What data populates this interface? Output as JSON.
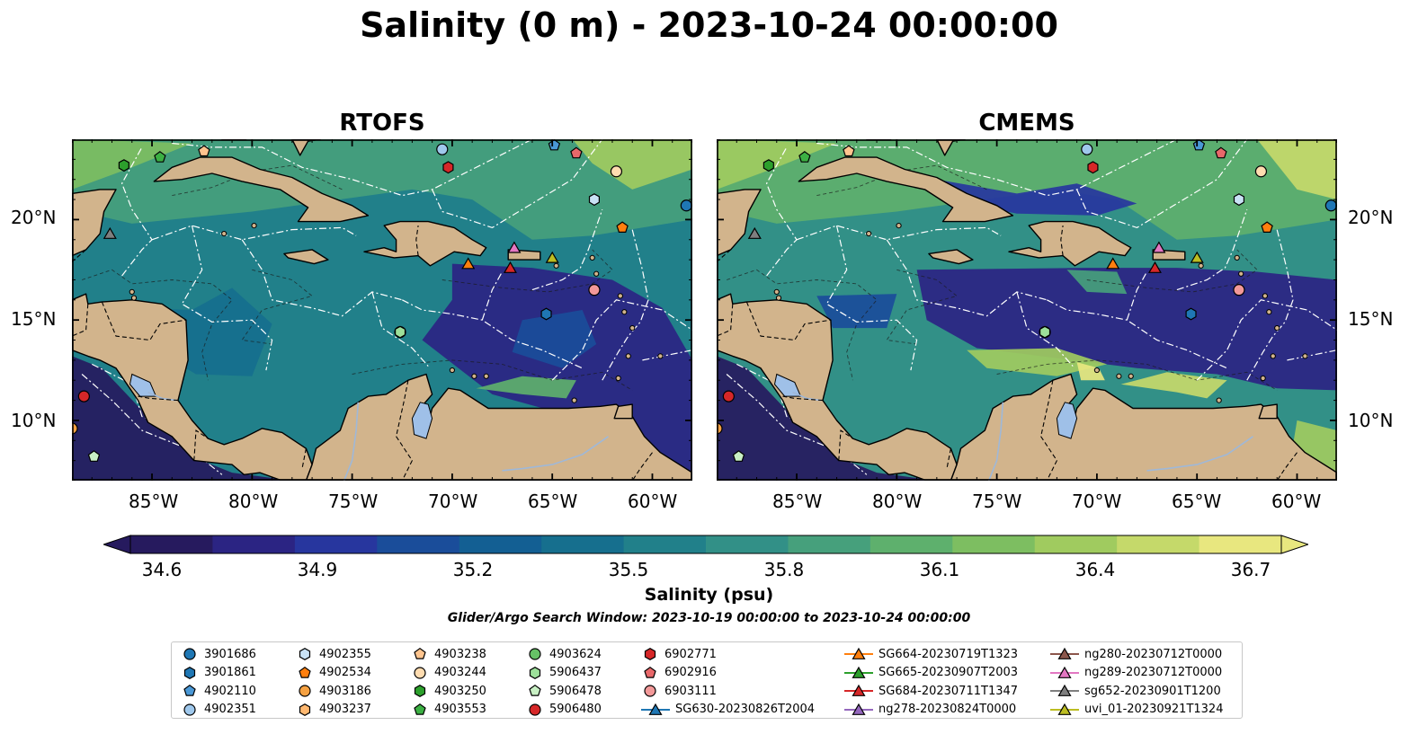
{
  "title": "Salinity (0 m) - 2023-10-24 00:00:00",
  "panels": [
    {
      "title": "RTOFS"
    },
    {
      "title": "CMEMS"
    }
  ],
  "map": {
    "lon_range": [
      -89,
      -58
    ],
    "lat_range": [
      7,
      24
    ],
    "lon_ticks": [
      "85°W",
      "80°W",
      "75°W",
      "70°W",
      "65°W",
      "60°W"
    ],
    "lat_ticks": [
      "20°N",
      "15°N",
      "10°N"
    ],
    "land_color": "#d2b48c",
    "lake_color": "#9fc0e8",
    "coast_color": "#000000",
    "isobath_color": "#1a1a1a",
    "eez_color": "#ffffff"
  },
  "colorbar": {
    "label": "Salinity (psu)",
    "min": 34.6,
    "max": 36.7,
    "ticks": [
      "34.6",
      "34.9",
      "35.2",
      "35.5",
      "35.8",
      "36.1",
      "36.4",
      "36.7"
    ],
    "colors": [
      "#261a5e",
      "#2b2483",
      "#27369e",
      "#1a4d9a",
      "#135f93",
      "#166f8e",
      "#21808a",
      "#329087",
      "#46a07c",
      "#5eb06d",
      "#7dbe61",
      "#a0cb5f",
      "#c5d96a",
      "#e8e77f"
    ]
  },
  "search_window": "Glider/Argo Search Window: 2023-10-19 00:00:00 to 2023-10-24 00:00:00",
  "legend": {
    "columns": [
      [
        {
          "label": "3901686",
          "marker": "circle",
          "color": "#1f77b4"
        },
        {
          "label": "3901861",
          "marker": "hexagon",
          "color": "#1f77b4"
        },
        {
          "label": "4902110",
          "marker": "pentagon",
          "color": "#4a98d6"
        },
        {
          "label": "4902351",
          "marker": "circle",
          "color": "#9fc8ec"
        }
      ],
      [
        {
          "label": "4902355",
          "marker": "hexagon",
          "color": "#c9e2f5"
        },
        {
          "label": "4902534",
          "marker": "pentagon",
          "color": "#ff7f0e"
        },
        {
          "label": "4903186",
          "marker": "circle",
          "color": "#f5a142"
        },
        {
          "label": "4903237",
          "marker": "hexagon",
          "color": "#ffb870"
        }
      ],
      [
        {
          "label": "4903238",
          "marker": "pentagon",
          "color": "#ffc58f"
        },
        {
          "label": "4903244",
          "marker": "circle",
          "color": "#ffdcb0"
        },
        {
          "label": "4903250",
          "marker": "hexagon",
          "color": "#2ca02c"
        },
        {
          "label": "4903553",
          "marker": "pentagon",
          "color": "#3cb043"
        }
      ],
      [
        {
          "label": "4903624",
          "marker": "circle",
          "color": "#66c266"
        },
        {
          "label": "5906437",
          "marker": "hexagon",
          "color": "#9de09a"
        },
        {
          "label": "5906478",
          "marker": "pentagon",
          "color": "#c8f0c4"
        },
        {
          "label": "5906480",
          "marker": "circle",
          "color": "#d62728"
        }
      ],
      [
        {
          "label": "6902771",
          "marker": "hexagon",
          "color": "#d62728"
        },
        {
          "label": "6902916",
          "marker": "pentagon",
          "color": "#e8686a"
        },
        {
          "label": "6903111",
          "marker": "circle",
          "color": "#f29999"
        },
        {
          "label": "SG630-20230826T2004",
          "marker": "triangle-line",
          "color": "#1f77b4"
        }
      ],
      [
        {
          "label": "SG664-20230719T1323",
          "marker": "triangle-line",
          "color": "#ff7f0e"
        },
        {
          "label": "SG665-20230907T2003",
          "marker": "triangle-line",
          "color": "#2ca02c"
        },
        {
          "label": "SG684-20230711T1347",
          "marker": "triangle-line",
          "color": "#d62728"
        },
        {
          "label": "ng278-20230824T0000",
          "marker": "triangle-line",
          "color": "#9467bd"
        }
      ],
      [
        {
          "label": "ng280-20230712T0000",
          "marker": "triangle-line",
          "color": "#8c564b"
        },
        {
          "label": "ng289-20230712T0000",
          "marker": "triangle-line",
          "color": "#e377c2"
        },
        {
          "label": "sg652-20230901T1200",
          "marker": "triangle-line",
          "color": "#7f7f7f"
        },
        {
          "label": "uvi_01-20230921T1324",
          "marker": "triangle-line",
          "color": "#bcbd22"
        }
      ]
    ]
  },
  "markers": [
    {
      "id": "3901686",
      "lon": -58.3,
      "lat": 20.7
    },
    {
      "id": "3901861",
      "lon": -65.3,
      "lat": 15.3
    },
    {
      "id": "4902110",
      "lon": -64.9,
      "lat": 23.7
    },
    {
      "id": "4902351",
      "lon": -70.5,
      "lat": 23.5
    },
    {
      "id": "4902355",
      "lon": -62.9,
      "lat": 21.0
    },
    {
      "id": "4902534",
      "lon": -61.5,
      "lat": 19.6
    },
    {
      "id": "4903186",
      "lon": -89.0,
      "lat": 9.6
    },
    {
      "id": "4903238",
      "lon": -82.4,
      "lat": 23.4
    },
    {
      "id": "4903244",
      "lon": -61.8,
      "lat": 22.4
    },
    {
      "id": "4903250",
      "lon": -86.4,
      "lat": 22.7
    },
    {
      "id": "4903553",
      "lon": -84.6,
      "lat": 23.1
    },
    {
      "id": "4903624",
      "lon": -72.6,
      "lat": 14.4
    },
    {
      "id": "5906437",
      "lon": -72.6,
      "lat": 14.4
    },
    {
      "id": "5906478",
      "lon": -87.9,
      "lat": 8.2
    },
    {
      "id": "5906480",
      "lon": -88.4,
      "lat": 11.2
    },
    {
      "id": "6902771",
      "lon": -70.2,
      "lat": 22.6
    },
    {
      "id": "6902916",
      "lon": -63.8,
      "lat": 23.3
    },
    {
      "id": "6903111",
      "lon": -62.9,
      "lat": 16.5
    },
    {
      "id": "SG664-20230719T1323",
      "lon": -69.2,
      "lat": 17.8
    },
    {
      "id": "SG684-20230711T1347",
      "lon": -67.1,
      "lat": 17.6
    },
    {
      "id": "ng289-20230712T0000",
      "lon": -66.9,
      "lat": 18.6
    },
    {
      "id": "sg652-20230901T1200",
      "lon": -87.1,
      "lat": 19.3
    },
    {
      "id": "uvi_01-20230921T1324",
      "lon": -65.0,
      "lat": 18.1
    }
  ]
}
